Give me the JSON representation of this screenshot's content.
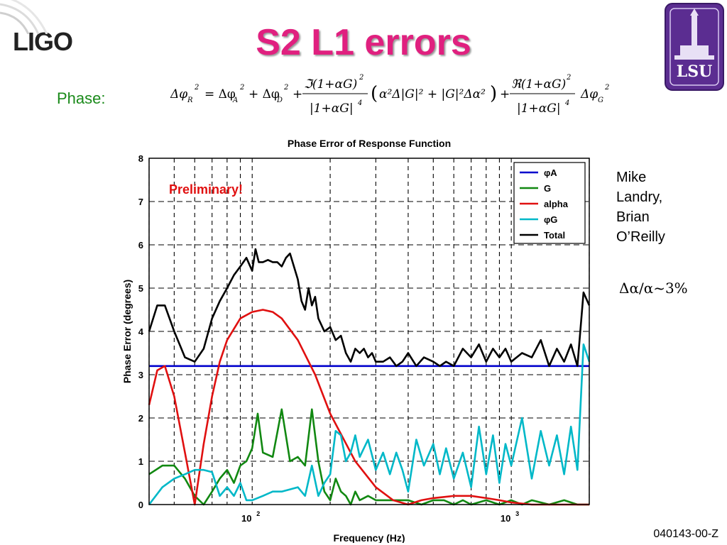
{
  "slide": {
    "title": "S2 L1 errors",
    "phase_label": "Phase:",
    "logo_text": "LIGO",
    "seal_text": "LSU",
    "authors": [
      "Mike",
      "Landry,",
      "Brian",
      "O’Reilly"
    ],
    "delta_note": "Δα/α~3%",
    "doc_id": "040143-00-Z"
  },
  "chart_data": {
    "type": "line",
    "title": "Phase Error of Response Function",
    "xlabel": "Frequency (Hz)",
    "ylabel": "Phase Error (degrees)",
    "xscale": "log",
    "xlim": [
      40,
      2000
    ],
    "ylim": [
      0,
      8
    ],
    "yticks": [
      0,
      1,
      2,
      3,
      4,
      5,
      6,
      7,
      8
    ],
    "xticks_major": [
      "10^2",
      "10^3"
    ],
    "grid": true,
    "legend_position": "top-right",
    "annotation": "Preliminary!",
    "series": [
      {
        "name": "φA",
        "color": "#0000cc",
        "x": [
          40,
          2000
        ],
        "y": [
          3.2,
          3.2
        ]
      },
      {
        "name": "G",
        "color": "#118811",
        "x": [
          40,
          45,
          50,
          55,
          60,
          65,
          70,
          75,
          80,
          85,
          90,
          95,
          100,
          105,
          110,
          120,
          130,
          140,
          150,
          160,
          170,
          180,
          190,
          200,
          210,
          220,
          230,
          240,
          250,
          260,
          280,
          300,
          320,
          340,
          360,
          400,
          450,
          500,
          550,
          600,
          650,
          700,
          800,
          900,
          1000,
          1100,
          1200,
          1400,
          1600,
          1800,
          2000
        ],
        "y": [
          0.7,
          0.9,
          0.9,
          0.6,
          0.2,
          0.0,
          0.3,
          0.6,
          0.8,
          0.5,
          0.9,
          1.0,
          1.3,
          2.1,
          1.2,
          1.1,
          2.2,
          1.0,
          1.1,
          0.9,
          2.2,
          1.0,
          0.3,
          0.1,
          0.6,
          0.3,
          0.2,
          0.0,
          0.3,
          0.1,
          0.2,
          0.1,
          0.1,
          0.1,
          0.1,
          0.1,
          0.0,
          0.1,
          0.1,
          0.0,
          0.1,
          0.0,
          0.1,
          0.0,
          0.1,
          0.0,
          0.1,
          0.0,
          0.1,
          0.0,
          0.0
        ]
      },
      {
        "name": "alpha",
        "color": "#e01010",
        "x": [
          40,
          43,
          46,
          50,
          55,
          60,
          65,
          70,
          75,
          80,
          90,
          100,
          110,
          120,
          130,
          150,
          175,
          200,
          250,
          300,
          350,
          400,
          450,
          500,
          600,
          700,
          800,
          900,
          1000,
          1200,
          1500,
          1800,
          2000
        ],
        "y": [
          2.3,
          3.1,
          3.2,
          2.5,
          1.2,
          0.0,
          1.4,
          2.5,
          3.3,
          3.8,
          4.3,
          4.45,
          4.5,
          4.45,
          4.3,
          3.8,
          3.0,
          2.1,
          1.0,
          0.4,
          0.1,
          0.0,
          0.1,
          0.15,
          0.2,
          0.2,
          0.15,
          0.1,
          0.05,
          0.0,
          0.0,
          0.0,
          0.0
        ]
      },
      {
        "name": "φG",
        "color": "#00b8c8",
        "x": [
          40,
          45,
          50,
          55,
          60,
          65,
          70,
          75,
          80,
          85,
          90,
          95,
          100,
          110,
          120,
          130,
          140,
          150,
          160,
          170,
          180,
          190,
          200,
          210,
          220,
          230,
          240,
          250,
          260,
          280,
          300,
          320,
          340,
          360,
          380,
          400,
          430,
          460,
          500,
          530,
          560,
          600,
          650,
          700,
          750,
          800,
          850,
          900,
          950,
          1000,
          1100,
          1200,
          1300,
          1400,
          1500,
          1600,
          1700,
          1800,
          1900,
          2000
        ],
        "y": [
          0.0,
          0.4,
          0.6,
          0.7,
          0.8,
          0.8,
          0.75,
          0.2,
          0.4,
          0.2,
          0.5,
          0.1,
          0.1,
          0.2,
          0.3,
          0.3,
          0.35,
          0.4,
          0.2,
          0.9,
          0.2,
          0.5,
          0.7,
          1.7,
          1.6,
          1.0,
          1.2,
          1.6,
          1.1,
          1.5,
          0.8,
          1.2,
          0.7,
          1.2,
          0.8,
          0.3,
          1.5,
          0.9,
          1.4,
          0.7,
          1.3,
          0.6,
          1.2,
          0.4,
          1.8,
          0.7,
          1.6,
          0.5,
          1.4,
          0.9,
          2.0,
          0.6,
          1.7,
          0.9,
          1.6,
          0.7,
          1.8,
          0.8,
          3.7,
          3.3
        ]
      },
      {
        "name": "Total",
        "color": "#000000",
        "x": [
          40,
          43,
          46,
          50,
          55,
          60,
          65,
          70,
          75,
          80,
          85,
          90,
          95,
          100,
          103,
          106,
          110,
          115,
          120,
          125,
          130,
          135,
          140,
          150,
          155,
          160,
          165,
          170,
          175,
          180,
          190,
          200,
          210,
          220,
          230,
          240,
          250,
          260,
          270,
          280,
          290,
          300,
          320,
          340,
          360,
          380,
          400,
          430,
          460,
          500,
          530,
          560,
          600,
          650,
          700,
          750,
          800,
          850,
          900,
          950,
          1000,
          1100,
          1200,
          1300,
          1400,
          1500,
          1600,
          1700,
          1800,
          1900,
          2000
        ],
        "y": [
          4.0,
          4.6,
          4.6,
          4.0,
          3.4,
          3.3,
          3.6,
          4.3,
          4.7,
          5.0,
          5.3,
          5.5,
          5.7,
          5.4,
          5.9,
          5.6,
          5.6,
          5.65,
          5.6,
          5.6,
          5.5,
          5.7,
          5.8,
          5.2,
          4.7,
          4.5,
          5.0,
          4.6,
          4.8,
          4.3,
          4.0,
          4.1,
          3.8,
          3.9,
          3.5,
          3.3,
          3.6,
          3.5,
          3.6,
          3.4,
          3.5,
          3.3,
          3.3,
          3.4,
          3.2,
          3.3,
          3.5,
          3.2,
          3.4,
          3.3,
          3.2,
          3.3,
          3.2,
          3.6,
          3.4,
          3.7,
          3.3,
          3.6,
          3.4,
          3.6,
          3.3,
          3.5,
          3.4,
          3.8,
          3.2,
          3.6,
          3.3,
          3.7,
          3.2,
          4.9,
          4.6
        ]
      }
    ]
  }
}
